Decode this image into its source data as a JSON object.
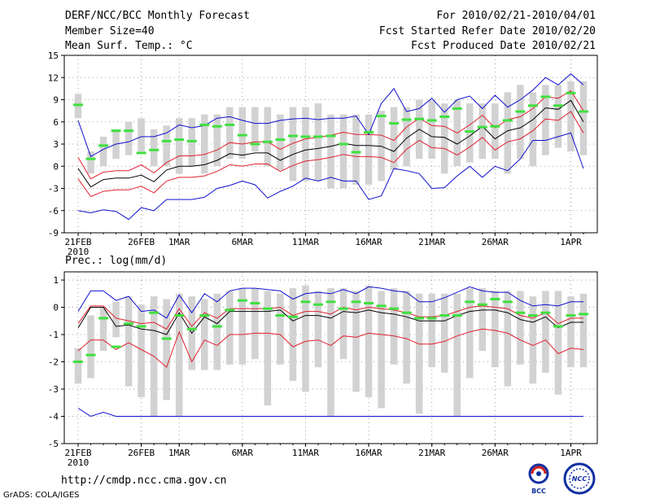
{
  "header": {
    "title": "DERF/NCC/BCC Monthly Forecast",
    "member_size": "Member Size=40",
    "variable": "Mean Surf. Temp.: °C",
    "period": "For 2010/02/21-2010/04/01",
    "started": "Fcst Started Refer Date 2010/02/20",
    "produced": "Fcst Produced Date 2010/02/21"
  },
  "footer": {
    "url": "http://cmdp.ncc.cma.gov.cn",
    "grads": "GrADS: COLA/IGES",
    "logo_left_text": "BCC",
    "logo_right_text": "NCC"
  },
  "colors": {
    "box": "#d2d2d2",
    "obs": "#40e040",
    "mean": "#000000",
    "inner": "#e02030",
    "outer": "#1010d0",
    "grid": "#888888"
  },
  "chart_data": [
    {
      "type": "box-ensemble",
      "title": "Mean Surf. Temp.: °C",
      "ylim": [
        -9,
        15
      ],
      "yticks": [
        -9,
        -6,
        -3,
        0,
        3,
        6,
        9,
        12,
        15
      ],
      "x_tick_labels": [
        {
          "day": 0,
          "label": "21FEB",
          "sub": "2010"
        },
        {
          "day": 5,
          "label": "26FEB"
        },
        {
          "day": 8,
          "label": "1MAR"
        },
        {
          "day": 13,
          "label": "6MAR"
        },
        {
          "day": 18,
          "label": "11MAR"
        },
        {
          "day": 23,
          "label": "16MAR"
        },
        {
          "day": 28,
          "label": "21MAR"
        },
        {
          "day": 33,
          "label": "26MAR"
        },
        {
          "day": 39,
          "label": "1APR"
        }
      ],
      "box_low": [
        6.5,
        -1,
        0,
        1,
        1.5,
        2,
        0,
        0,
        -1,
        0,
        -1,
        0,
        1,
        1,
        2,
        0,
        -0.5,
        -2,
        -2,
        -2,
        -3,
        -3,
        -2.5,
        -2.5,
        -2,
        -0.5,
        0,
        1,
        1,
        -1,
        0,
        0.5,
        1,
        1,
        -1,
        1,
        0,
        1.5,
        2.5,
        2,
        1.5
      ],
      "box_high": [
        9.8,
        2,
        4,
        5,
        6,
        6.5,
        5,
        5.5,
        6.5,
        6.5,
        7,
        7,
        8,
        8,
        8,
        8,
        7,
        8,
        8,
        8.5,
        7,
        7,
        7,
        7,
        7.5,
        8,
        8,
        9,
        9,
        8.5,
        9,
        8.5,
        8.5,
        8.5,
        10,
        11,
        10,
        11,
        11,
        11.5,
        11.5
      ],
      "obs": [
        8.3,
        1,
        2.8,
        4.8,
        4.8,
        1.8,
        2.2,
        3.4,
        3.6,
        3.4,
        5.6,
        5.4,
        5.6,
        4.2,
        3,
        3.3,
        3.6,
        4.1,
        4,
        4,
        4.1,
        3,
        1.9,
        4.6,
        6.8,
        5.8,
        6.3,
        6.4,
        6.2,
        6.7,
        7.8,
        4.7,
        5.3,
        5.4,
        6.2,
        7.4,
        8.2,
        9.4,
        8.2,
        9.9,
        7.4
      ],
      "series": [
        {
          "name": "mean",
          "values": [
            -0.3,
            -2.8,
            -1.8,
            -1.6,
            -1.6,
            -1.2,
            -2.1,
            -0.5,
            0,
            0,
            0.2,
            0.8,
            1.7,
            1.5,
            1.8,
            1.8,
            0.8,
            1.6,
            2.2,
            2.4,
            2.7,
            3.1,
            2.8,
            2.8,
            2.7,
            2,
            3.8,
            5,
            4,
            3.9,
            3,
            4.1,
            5.4,
            3.7,
            4.8,
            5.2,
            6.3,
            7.9,
            7.7,
            8.9,
            6
          ]
        },
        {
          "name": "upper-inner",
          "values": [
            1.2,
            -1.7,
            -0.8,
            -0.6,
            -0.6,
            0.2,
            -0.9,
            0.5,
            1.4,
            1.4,
            1.6,
            2.2,
            3.2,
            3,
            3.3,
            3.3,
            2.3,
            3.1,
            3.7,
            3.9,
            4.2,
            4.6,
            4.3,
            4.3,
            4.2,
            3.5,
            5.3,
            6.5,
            5.5,
            5.4,
            4.5,
            5.6,
            6.9,
            5.2,
            6.3,
            6.7,
            7.8,
            9.4,
            9.2,
            10.2,
            7.5
          ]
        },
        {
          "name": "lower-inner",
          "values": [
            -1.7,
            -4.1,
            -3.4,
            -3.2,
            -3.2,
            -2.7,
            -3.6,
            -2,
            -1.5,
            -1.5,
            -1.3,
            -0.7,
            0.2,
            0,
            0.3,
            0.3,
            -0.7,
            0.1,
            0.7,
            0.9,
            1.2,
            1.6,
            1.3,
            1.3,
            1.2,
            0.5,
            2.3,
            3.5,
            2.5,
            2.4,
            1.5,
            2.6,
            3.9,
            2.2,
            3.3,
            3.7,
            4.8,
            6.4,
            6.2,
            7.4,
            4.5
          ]
        },
        {
          "name": "upper-outer",
          "values": [
            6.2,
            1.3,
            2.3,
            3,
            3.3,
            4,
            4,
            4.5,
            5.6,
            5.2,
            5.5,
            6.5,
            6.7,
            6.2,
            5.8,
            5.8,
            6.2,
            6.4,
            6.5,
            6.3,
            6.5,
            6.5,
            6.8,
            4.3,
            8.5,
            10.5,
            7.4,
            7.8,
            9.2,
            7.3,
            9,
            9.5,
            7.8,
            9.6,
            8,
            9,
            10.3,
            12,
            11,
            12.5,
            11
          ]
        },
        {
          "name": "lower-outer",
          "values": [
            -6,
            -6.3,
            -5.9,
            -6.1,
            -7.2,
            -5.6,
            -6,
            -4.5,
            -4.5,
            -4.5,
            -4.2,
            -3,
            -2.6,
            -2,
            -2.5,
            -4.3,
            -3.4,
            -2.7,
            -1.6,
            -2,
            -1.5,
            -2,
            -2,
            -4.5,
            -4,
            -0.3,
            -0.6,
            -1,
            -3,
            -2.9,
            -1.3,
            0,
            -1.5,
            0,
            -0.6,
            1,
            3.5,
            3.5,
            4,
            4.5,
            -0.3
          ]
        }
      ]
    },
    {
      "type": "box-ensemble",
      "title": "Prec.: log(mm/d)",
      "ylim": [
        -5,
        1.3
      ],
      "yticks": [
        -5,
        -4,
        -3,
        -2,
        -1,
        0,
        1
      ],
      "x_tick_labels": [
        {
          "day": 0,
          "label": "21FEB",
          "sub": "2010"
        },
        {
          "day": 5,
          "label": "26FEB"
        },
        {
          "day": 8,
          "label": "1MAR"
        },
        {
          "day": 13,
          "label": "6MAR"
        },
        {
          "day": 18,
          "label": "11MAR"
        },
        {
          "day": 23,
          "label": "16MAR"
        },
        {
          "day": 28,
          "label": "21MAR"
        },
        {
          "day": 33,
          "label": "26MAR"
        },
        {
          "day": 39,
          "label": "1APR"
        }
      ],
      "box_low": [
        -2.8,
        -2.6,
        -1.6,
        -1.1,
        -2.9,
        -3.3,
        -4,
        -3.4,
        -4,
        -2.3,
        -2.3,
        -2.3,
        -2.1,
        -2.1,
        -1.9,
        -3.6,
        -2.1,
        -2.7,
        -3.1,
        -2.2,
        -4,
        -1.9,
        -3.1,
        -3.3,
        -3.7,
        -2.1,
        -2.8,
        -3.9,
        -2.2,
        -2.4,
        -4,
        -2.6,
        -1.6,
        -2.2,
        -2.9,
        -2.1,
        -2.8,
        -2.4,
        -3.2,
        -2.2,
        -2.2
      ],
      "box_high": [
        -1.5,
        -0.3,
        0,
        0.2,
        0.4,
        0.1,
        0.4,
        0.3,
        0.5,
        0.4,
        0.3,
        0.5,
        0.6,
        0.7,
        0.7,
        0.6,
        0.5,
        0.7,
        0.8,
        0.6,
        0.7,
        0.7,
        0.6,
        0.8,
        0.6,
        0.7,
        0.6,
        0.5,
        0.5,
        0.5,
        0.5,
        0.7,
        0.7,
        0.6,
        0.6,
        0.6,
        0.4,
        0.6,
        0.6,
        0.4,
        0.5
      ],
      "obs": [
        -2,
        -1.75,
        -0.4,
        -1.45,
        -0.6,
        -0.7,
        -0.2,
        -1.15,
        -0.3,
        -0.8,
        -0.3,
        -0.7,
        -0.1,
        0.25,
        0.15,
        -0.05,
        -0.3,
        -0.35,
        0.2,
        0.1,
        0.2,
        -0.05,
        0.2,
        0.15,
        0.05,
        -0.05,
        -0.2,
        -0.4,
        -0.4,
        -0.3,
        -0.3,
        0.2,
        0.1,
        0.3,
        0.2,
        -0.2,
        -0.3,
        -0.2,
        -0.7,
        -0.3,
        -0.25
      ],
      "series": [
        {
          "name": "mean",
          "values": [
            -0.75,
            0,
            0,
            -0.7,
            -0.65,
            -0.8,
            -0.85,
            -1,
            -0.2,
            -0.95,
            -0.35,
            -0.6,
            -0.15,
            -0.15,
            -0.15,
            -0.15,
            -0.1,
            -0.5,
            -0.3,
            -0.3,
            -0.4,
            -0.15,
            -0.2,
            -0.1,
            -0.2,
            -0.25,
            -0.35,
            -0.5,
            -0.5,
            -0.5,
            -0.3,
            -0.15,
            -0.1,
            -0.1,
            -0.2,
            -0.45,
            -0.55,
            -0.35,
            -0.75,
            -0.55,
            -0.55
          ]
        },
        {
          "name": "upper-inner",
          "values": [
            -0.6,
            0.05,
            0.05,
            -0.4,
            -0.5,
            -0.6,
            -0.55,
            -0.8,
            -0.05,
            -0.7,
            -0.2,
            -0.4,
            -0.05,
            -0.05,
            -0.05,
            -0.05,
            0,
            -0.3,
            -0.15,
            -0.15,
            -0.25,
            0,
            -0.1,
            0,
            -0.05,
            -0.1,
            -0.2,
            -0.35,
            -0.35,
            -0.3,
            -0.15,
            0,
            0.05,
            0,
            -0.05,
            -0.3,
            -0.4,
            -0.2,
            -0.6,
            -0.4,
            -0.4
          ]
        },
        {
          "name": "lower-inner",
          "values": [
            -1.6,
            -1.2,
            -1.2,
            -1.55,
            -1.3,
            -1.55,
            -1.8,
            -2.2,
            -0.9,
            -2,
            -1.2,
            -1.4,
            -1,
            -1,
            -0.95,
            -0.95,
            -1,
            -1.45,
            -1.25,
            -1.2,
            -1.4,
            -1.05,
            -1.1,
            -0.95,
            -1,
            -1.05,
            -1.15,
            -1.35,
            -1.35,
            -1.25,
            -1.05,
            -0.9,
            -0.8,
            -0.85,
            -0.95,
            -1.2,
            -1.4,
            -1.2,
            -1.7,
            -1.5,
            -1.55
          ]
        },
        {
          "name": "upper-outer",
          "values": [
            -0.15,
            0.6,
            0.6,
            0.25,
            0.4,
            -0.15,
            -0.1,
            -0.4,
            0.45,
            -0.2,
            0.5,
            0.2,
            0.6,
            0.7,
            0.7,
            0.65,
            0.6,
            0.3,
            0.5,
            0.55,
            0.5,
            0.65,
            0.5,
            0.75,
            0.7,
            0.6,
            0.55,
            0.2,
            0.2,
            0.35,
            0.55,
            0.75,
            0.6,
            0.55,
            0.55,
            0.25,
            0.05,
            0.1,
            0.05,
            0.2,
            0.2
          ]
        },
        {
          "name": "lower-outer",
          "values": [
            -3.7,
            -4,
            -3.85,
            -4,
            -4,
            -4,
            -4,
            -4,
            -4,
            -4,
            -4,
            -4,
            -4,
            -4,
            -4,
            -4,
            -4,
            -4,
            -4,
            -4,
            -4,
            -4,
            -4,
            -4,
            -4,
            -4,
            -4,
            -4,
            -4,
            -4,
            -4,
            -4,
            -4,
            -4,
            -4,
            -4,
            -4,
            -4,
            -4,
            -4,
            -4
          ]
        }
      ]
    }
  ]
}
